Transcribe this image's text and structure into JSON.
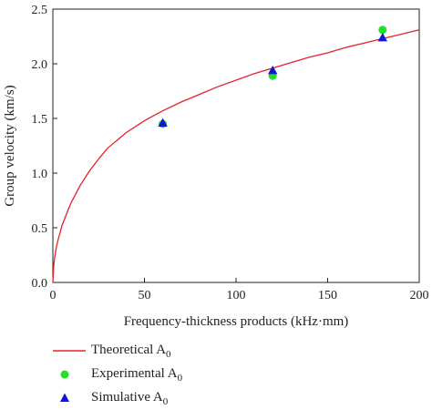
{
  "chart_data": {
    "type": "scatter",
    "xlabel": "Frequency-thickness products (kHz·mm)",
    "ylabel": "Group velocity (km/s)",
    "xlim": [
      0,
      200
    ],
    "ylim": [
      0,
      2.5
    ],
    "x_ticks": [
      0,
      50,
      100,
      150,
      200
    ],
    "y_ticks": [
      0.0,
      0.5,
      1.0,
      1.5,
      2.0,
      2.5
    ],
    "x_tick_labels": [
      "0",
      "50",
      "100",
      "150",
      "200"
    ],
    "y_tick_labels": [
      "0.0",
      "0.5",
      "1.0",
      "1.5",
      "2.0",
      "2.5"
    ],
    "grid": false,
    "legend_position": "bottom-left, below plot",
    "series": [
      {
        "name": "Theoretical A",
        "subscript": "0",
        "kind": "line",
        "color": "#e8202a",
        "x": [
          0,
          0.5,
          1,
          2,
          3,
          5,
          8,
          10,
          15,
          20,
          25,
          30,
          40,
          50,
          60,
          70,
          80,
          90,
          100,
          110,
          120,
          130,
          140,
          150,
          160,
          170,
          180,
          190,
          200
        ],
        "y": [
          0.0,
          0.16,
          0.23,
          0.33,
          0.4,
          0.52,
          0.65,
          0.73,
          0.89,
          1.02,
          1.13,
          1.23,
          1.37,
          1.48,
          1.57,
          1.65,
          1.72,
          1.79,
          1.85,
          1.91,
          1.96,
          2.01,
          2.06,
          2.1,
          2.15,
          2.19,
          2.23,
          2.27,
          2.31
        ]
      },
      {
        "name": "Experimental A",
        "subscript": "0",
        "kind": "scatter",
        "marker": "circle",
        "color": "#22e02a",
        "x": [
          60,
          120,
          180
        ],
        "y": [
          1.45,
          1.89,
          2.31
        ]
      },
      {
        "name": "Simulative A",
        "subscript": "0",
        "kind": "scatter",
        "marker": "triangle",
        "color": "#1515d0",
        "x": [
          60,
          120,
          180
        ],
        "y": [
          1.46,
          1.94,
          2.24
        ]
      }
    ]
  }
}
